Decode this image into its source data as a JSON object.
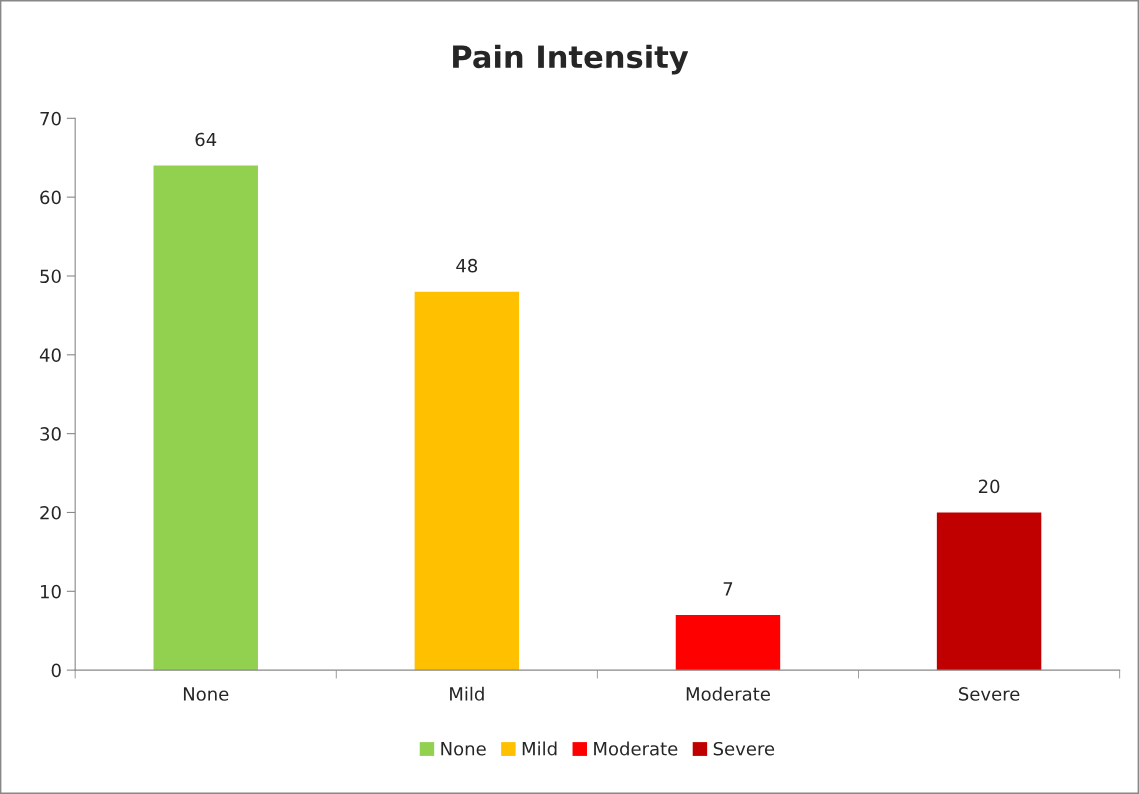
{
  "chart_data": {
    "type": "bar",
    "title": "Pain Intensity",
    "categories": [
      "None",
      "Mild",
      "Moderate",
      "Severe"
    ],
    "series": [
      {
        "name": "None",
        "color": "#92d050",
        "values": [
          64,
          null,
          null,
          null
        ]
      },
      {
        "name": "Mild",
        "color": "#ffc000",
        "values": [
          null,
          48,
          null,
          null
        ]
      },
      {
        "name": "Moderate",
        "color": "#ff0000",
        "values": [
          null,
          null,
          7,
          null
        ]
      },
      {
        "name": "Severe",
        "color": "#c00000",
        "values": [
          null,
          null,
          null,
          20
        ]
      }
    ],
    "ylim": [
      0,
      70
    ],
    "yticks": [
      0,
      10,
      20,
      30,
      40,
      50,
      60,
      70
    ],
    "grid": false,
    "legend": "bottom",
    "data_labels": true
  }
}
